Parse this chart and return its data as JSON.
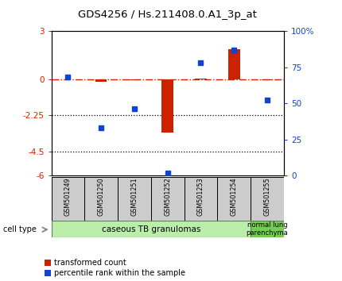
{
  "title": "GDS4256 / Hs.211408.0.A1_3p_at",
  "samples": [
    "GSM501249",
    "GSM501250",
    "GSM501251",
    "GSM501252",
    "GSM501253",
    "GSM501254",
    "GSM501255"
  ],
  "red_values": [
    0.0,
    -0.18,
    -0.05,
    -3.3,
    0.05,
    1.85,
    -0.05
  ],
  "blue_values_pct": [
    68,
    33,
    46,
    2,
    78,
    87,
    52
  ],
  "ylim_left": [
    -6,
    3
  ],
  "ylim_right": [
    0,
    100
  ],
  "yticks_left": [
    -6,
    -4.5,
    -2.25,
    0,
    3
  ],
  "yticks_left_labels": [
    "-6",
    "-4.5",
    "-2.25",
    "0",
    "3"
  ],
  "yticks_right": [
    0,
    25,
    50,
    75,
    100
  ],
  "yticks_right_labels": [
    "0",
    "25",
    "50",
    "75",
    "100%"
  ],
  "hline_dotted": [
    -2.25,
    -4.5
  ],
  "group1_label": "caseous TB granulomas",
  "group2_label": "normal lung\nparenchyma",
  "cell_type_label": "cell type",
  "legend1_label": "transformed count",
  "legend2_label": "percentile rank within the sample",
  "red_color": "#cc2200",
  "blue_color": "#1144cc",
  "group1_color": "#bbeeaa",
  "group2_color": "#77cc55",
  "sample_box_color": "#cccccc",
  "bar_width": 0.35
}
